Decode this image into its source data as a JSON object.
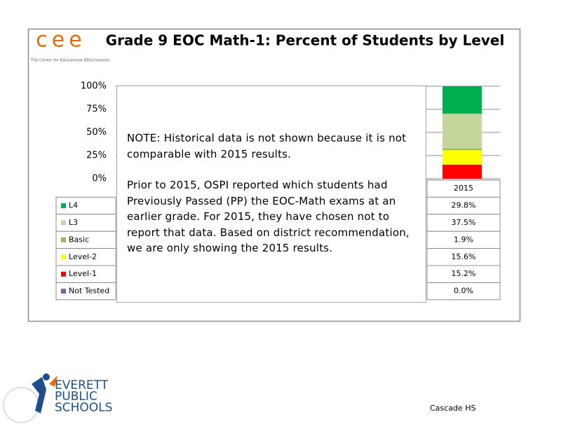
{
  "logo": {
    "mark": "cee",
    "caption": "The Center for Educational Effectiveness"
  },
  "chart_data": {
    "type": "bar",
    "stacked": true,
    "title": "Grade 9 EOC Math-1: Percent of Students by Level",
    "categories": [
      "2015"
    ],
    "series": [
      {
        "name": "L4",
        "color": "#00b050",
        "values": [
          29.8
        ],
        "value_labels": [
          "29.8%"
        ]
      },
      {
        "name": "L3",
        "color": "#c4d79b",
        "values": [
          37.5
        ],
        "value_labels": [
          "37.5%"
        ]
      },
      {
        "name": "Basic",
        "color": "#9bbb59",
        "values": [
          1.9
        ],
        "value_labels": [
          "1.9%"
        ]
      },
      {
        "name": "Level-2",
        "color": "#ffff00",
        "values": [
          15.6
        ],
        "value_labels": [
          "15.6%"
        ]
      },
      {
        "name": "Level-1",
        "color": "#ff0000",
        "values": [
          15.2
        ],
        "value_labels": [
          "15.2%"
        ]
      },
      {
        "name": "Not Tested",
        "color": "#8064a2",
        "values": [
          0.0
        ],
        "value_labels": [
          "0.0%"
        ]
      }
    ],
    "ylim": [
      0,
      100
    ],
    "yticks": [
      {
        "value": 0,
        "label": "0%"
      },
      {
        "value": 25,
        "label": "25%"
      },
      {
        "value": 50,
        "label": "50%"
      },
      {
        "value": 75,
        "label": "75%"
      },
      {
        "value": 100,
        "label": "100%"
      }
    ],
    "grid": true,
    "note": [
      "NOTE:  Historical data is not shown because it is not comparable with 2015 results.",
      "Prior to 2015, OSPI reported which students had Previously Passed (PP) the EOC-Math exams at an earlier grade. For 2015, they have chosen not to report that data. Based on district recommendation, we are only showing the 2015 results."
    ]
  },
  "footer": {
    "district": [
      "EVERETT",
      "PUBLIC",
      "SCHOOLS"
    ],
    "school": "Cascade HS"
  }
}
